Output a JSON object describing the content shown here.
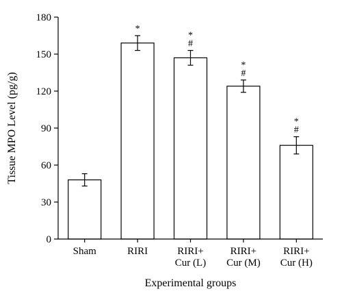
{
  "chart_data": {
    "type": "bar",
    "categories": [
      [
        "Sham"
      ],
      [
        "RIRI"
      ],
      [
        "RIRI+",
        "Cur (L)"
      ],
      [
        "RIRI+",
        "Cur (M)"
      ],
      [
        "RIRI+",
        "Cur (H)"
      ]
    ],
    "values": [
      48,
      159,
      147,
      124,
      76
    ],
    "errors": [
      5,
      6,
      6,
      5,
      7
    ],
    "annotations": [
      [],
      [
        "*"
      ],
      [
        "*",
        "#"
      ],
      [
        "*",
        "#"
      ],
      [
        "*",
        "#"
      ]
    ],
    "title": "",
    "xlabel": "Experimental groups",
    "ylabel": "Tissue MPO Level (pg/g)",
    "ylim": [
      0,
      180
    ],
    "yticks": [
      0,
      30,
      60,
      90,
      120,
      150,
      180
    ],
    "grid": false,
    "colors": {
      "bar_fill": "#ffffff",
      "bar_stroke": "#000000",
      "axis": "#000000"
    }
  }
}
